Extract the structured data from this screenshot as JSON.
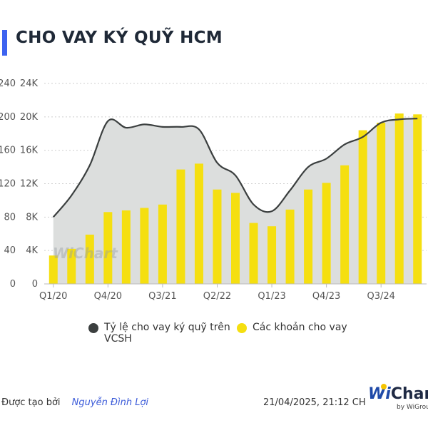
{
  "title": "CHO VAY KÝ QUỸ HCM",
  "chart_data": {
    "type": "bar+area",
    "categories": [
      "Q1/20",
      "Q2/20",
      "Q3/20",
      "Q4/20",
      "Q1/21",
      "Q2/21",
      "Q3/21",
      "Q4/21",
      "Q1/22",
      "Q2/22",
      "Q3/22",
      "Q4/22",
      "Q1/23",
      "Q2/23",
      "Q3/23",
      "Q4/23",
      "Q1/24",
      "Q2/24",
      "Q3/24",
      "Q4/24",
      "Q1/25"
    ],
    "x_tick_labels": [
      "Q1/20",
      "Q4/20",
      "Q3/21",
      "Q2/22",
      "Q1/23",
      "Q4/23",
      "Q3/24"
    ],
    "y_left_ticks": [
      "240",
      "200",
      "160",
      "120",
      "80",
      "40",
      "0"
    ],
    "y_right_ticks": [
      "24K",
      "20K",
      "16K",
      "12K",
      "8K",
      "4K",
      "0"
    ],
    "y_left_lim": [
      0,
      240
    ],
    "y_right_lim": [
      0,
      24000
    ],
    "series": [
      {
        "name": "Tỷ lệ cho vay ký quỹ trên VCSH",
        "type": "area",
        "axis": "left",
        "color": "#3b3f3f",
        "fill": "#dcdedd",
        "values": [
          80,
          106,
          142,
          195,
          187,
          191,
          188,
          188,
          185,
          145,
          130,
          95,
          87,
          112,
          140,
          150,
          167,
          176,
          193,
          197,
          198
        ]
      },
      {
        "name": "Các khoản cho vay",
        "type": "bar",
        "axis": "right",
        "color": "#f5df10",
        "values": [
          3400,
          4200,
          5900,
          8600,
          8800,
          9100,
          9500,
          13700,
          14400,
          11300,
          10900,
          7300,
          6900,
          8900,
          11300,
          12100,
          14200,
          18400,
          19300,
          20400,
          20300
        ]
      }
    ],
    "legend_position": "bottom",
    "grid": true
  },
  "legend": {
    "line_label_1": "Tỷ lệ cho vay ký quỹ trên",
    "line_label_2": "VCSH",
    "bar_label": "Các khoản cho vay"
  },
  "footer": {
    "created_by": "Được tạo bởi",
    "author": "Nguyễn Đình Lợi",
    "timestamp": "21/04/2025, 21:12 CH"
  },
  "watermark": "WiChart",
  "brand": {
    "w": "Wi",
    "name": "Chart",
    "by": "by WiGroup"
  }
}
